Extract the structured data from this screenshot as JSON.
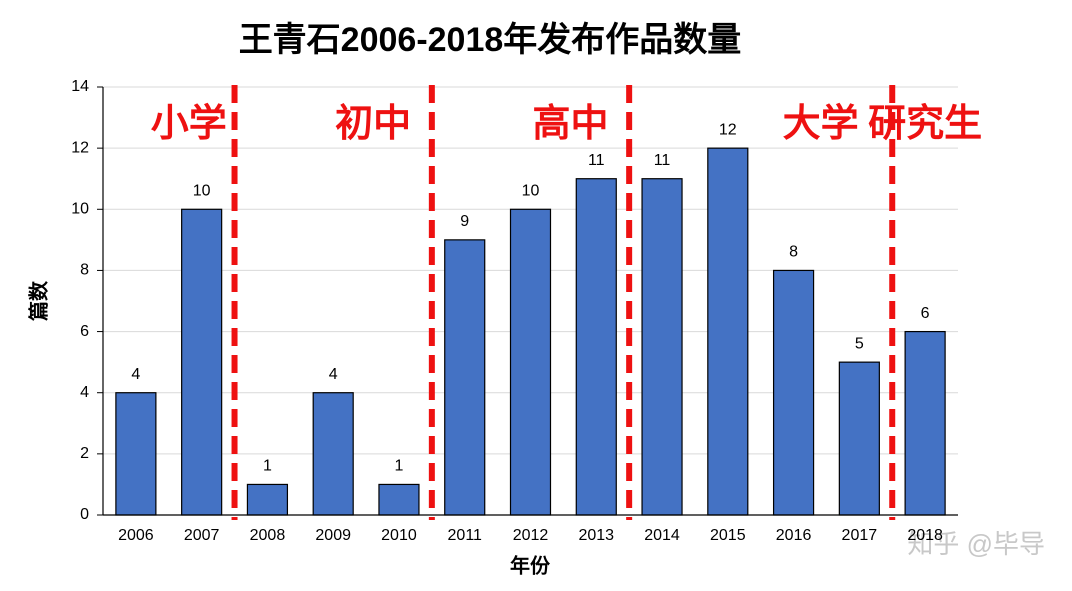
{
  "chart_data": {
    "type": "bar",
    "title": "王青石2006-2018年发布作品数量",
    "x_label": "年份",
    "y_label": "篇数",
    "categories": [
      "2006",
      "2007",
      "2008",
      "2009",
      "2010",
      "2011",
      "2012",
      "2013",
      "2014",
      "2015",
      "2016",
      "2017",
      "2018"
    ],
    "values": [
      4,
      10,
      1,
      4,
      1,
      9,
      10,
      11,
      11,
      12,
      8,
      5,
      6
    ],
    "color": "#4472c4",
    "ylim": [
      0,
      14
    ],
    "yticks": [
      0,
      2,
      4,
      6,
      8,
      10,
      12,
      14
    ],
    "grid": true,
    "phases": [
      {
        "label": "小学",
        "from": "2006",
        "to": "2007"
      },
      {
        "label": "初中",
        "from": "2008",
        "to": "2010"
      },
      {
        "label": "高中",
        "from": "2011",
        "to": "2013"
      },
      {
        "label": "大学",
        "from": "2014",
        "to": "2017"
      },
      {
        "label": "研究生",
        "from": "2018",
        "to": "2018"
      }
    ],
    "phase_color": "#ee1111",
    "watermark": "知乎 @毕导"
  }
}
